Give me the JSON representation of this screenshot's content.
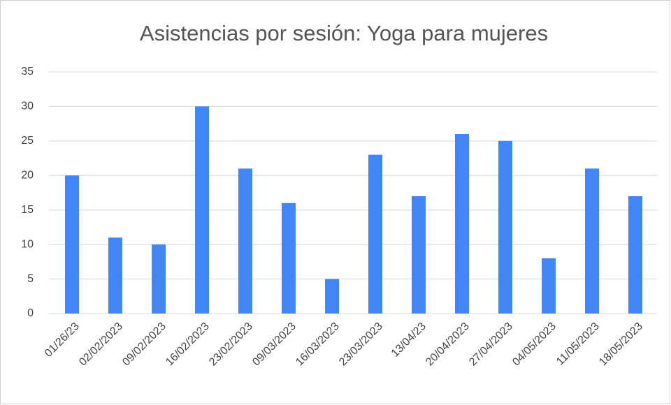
{
  "chart_data": {
    "type": "bar",
    "title": "Asistencias por sesión: Yoga para mujeres",
    "categories": [
      "01/26/23",
      "02/02/2023",
      "09/02/2023",
      "16/02/2023",
      "23/02/2023",
      "09/03/2023",
      "16/03/2023",
      "23/03/2023",
      "13/04/23",
      "20/04/2023",
      "27/04/2023",
      "04/05/2023",
      "11/05/2023",
      "18/05/2023"
    ],
    "values": [
      20,
      11,
      10,
      30,
      21,
      16,
      5,
      23,
      17,
      26,
      25,
      8,
      21,
      17
    ],
    "color": "#4285f4",
    "ylim": [
      0,
      35
    ],
    "yticks": [
      0,
      5,
      10,
      15,
      20,
      25,
      30,
      35
    ],
    "grid": true
  }
}
